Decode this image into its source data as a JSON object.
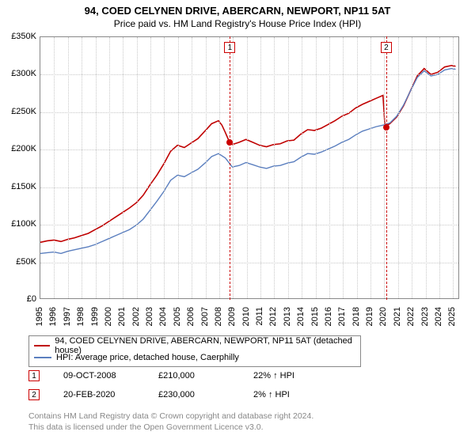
{
  "title": "94, COED CELYNEN DRIVE, ABERCARN, NEWPORT, NP11 5AT",
  "subtitle": "Price paid vs. HM Land Registry's House Price Index (HPI)",
  "chart": {
    "type": "line",
    "y": {
      "min": 0,
      "max": 350000,
      "step": 50000,
      "prefix": "£",
      "suffix": "K",
      "scale": 1000
    },
    "x": {
      "min": 1995,
      "max": 2025.5,
      "ticks": [
        1995,
        1996,
        1997,
        1998,
        1999,
        2000,
        2001,
        2002,
        2003,
        2004,
        2005,
        2006,
        2007,
        2008,
        2009,
        2010,
        2011,
        2012,
        2013,
        2014,
        2015,
        2016,
        2017,
        2018,
        2019,
        2020,
        2021,
        2022,
        2023,
        2024,
        2025
      ]
    },
    "grid_color": "#c8c8c8",
    "background_color": "#ffffff",
    "border_color": "#888888",
    "series": [
      {
        "name": "property",
        "label": "94, COED CELYNEN DRIVE, ABERCARN, NEWPORT, NP11 5AT (detached house)",
        "color": "#c00000",
        "width": 1.6,
        "points": [
          [
            1995,
            75000
          ],
          [
            1995.5,
            77000
          ],
          [
            1996,
            78000
          ],
          [
            1996.5,
            76000
          ],
          [
            1997,
            79000
          ],
          [
            1997.5,
            81000
          ],
          [
            1998,
            84000
          ],
          [
            1998.5,
            87000
          ],
          [
            1999,
            92000
          ],
          [
            1999.5,
            97000
          ],
          [
            2000,
            103000
          ],
          [
            2000.5,
            109000
          ],
          [
            2001,
            115000
          ],
          [
            2001.5,
            121000
          ],
          [
            2002,
            128000
          ],
          [
            2002.5,
            138000
          ],
          [
            2003,
            152000
          ],
          [
            2003.5,
            165000
          ],
          [
            2004,
            180000
          ],
          [
            2004.5,
            197000
          ],
          [
            2005,
            205000
          ],
          [
            2005.5,
            202000
          ],
          [
            2006,
            208000
          ],
          [
            2006.5,
            214000
          ],
          [
            2007,
            224000
          ],
          [
            2007.5,
            234000
          ],
          [
            2008,
            238000
          ],
          [
            2008.25,
            232000
          ],
          [
            2008.5,
            222000
          ],
          [
            2008.78,
            210000
          ],
          [
            2009,
            206000
          ],
          [
            2009.5,
            209000
          ],
          [
            2010,
            213000
          ],
          [
            2010.5,
            209000
          ],
          [
            2011,
            205000
          ],
          [
            2011.5,
            203000
          ],
          [
            2012,
            206000
          ],
          [
            2012.5,
            207000
          ],
          [
            2013,
            211000
          ],
          [
            2013.5,
            212000
          ],
          [
            2014,
            220000
          ],
          [
            2014.5,
            226000
          ],
          [
            2015,
            225000
          ],
          [
            2015.5,
            228000
          ],
          [
            2016,
            233000
          ],
          [
            2016.5,
            238000
          ],
          [
            2017,
            244000
          ],
          [
            2017.5,
            248000
          ],
          [
            2018,
            255000
          ],
          [
            2018.5,
            260000
          ],
          [
            2019,
            264000
          ],
          [
            2019.5,
            268000
          ],
          [
            2020,
            272000
          ],
          [
            2020.14,
            230000
          ],
          [
            2020.5,
            234000
          ],
          [
            2021,
            243000
          ],
          [
            2021.5,
            258000
          ],
          [
            2022,
            278000
          ],
          [
            2022.5,
            298000
          ],
          [
            2023,
            308000
          ],
          [
            2023.5,
            300000
          ],
          [
            2024,
            303000
          ],
          [
            2024.5,
            310000
          ],
          [
            2025,
            312000
          ],
          [
            2025.3,
            311000
          ]
        ]
      },
      {
        "name": "hpi",
        "label": "HPI: Average price, detached house, Caerphilly",
        "color": "#5b7fbf",
        "width": 1.4,
        "points": [
          [
            1995,
            60000
          ],
          [
            1995.5,
            61000
          ],
          [
            1996,
            62000
          ],
          [
            1996.5,
            60000
          ],
          [
            1997,
            63000
          ],
          [
            1997.5,
            65000
          ],
          [
            1998,
            67000
          ],
          [
            1998.5,
            69000
          ],
          [
            1999,
            72000
          ],
          [
            1999.5,
            76000
          ],
          [
            2000,
            80000
          ],
          [
            2000.5,
            84000
          ],
          [
            2001,
            88000
          ],
          [
            2001.5,
            92000
          ],
          [
            2002,
            98000
          ],
          [
            2002.5,
            106000
          ],
          [
            2003,
            118000
          ],
          [
            2003.5,
            130000
          ],
          [
            2004,
            143000
          ],
          [
            2004.5,
            158000
          ],
          [
            2005,
            165000
          ],
          [
            2005.5,
            163000
          ],
          [
            2006,
            168000
          ],
          [
            2006.5,
            173000
          ],
          [
            2007,
            181000
          ],
          [
            2007.5,
            190000
          ],
          [
            2008,
            194000
          ],
          [
            2008.5,
            188000
          ],
          [
            2009,
            176000
          ],
          [
            2009.5,
            178000
          ],
          [
            2010,
            182000
          ],
          [
            2010.5,
            179000
          ],
          [
            2011,
            176000
          ],
          [
            2011.5,
            174000
          ],
          [
            2012,
            177000
          ],
          [
            2012.5,
            178000
          ],
          [
            2013,
            181000
          ],
          [
            2013.5,
            183000
          ],
          [
            2014,
            189000
          ],
          [
            2014.5,
            194000
          ],
          [
            2015,
            193000
          ],
          [
            2015.5,
            196000
          ],
          [
            2016,
            200000
          ],
          [
            2016.5,
            204000
          ],
          [
            2017,
            209000
          ],
          [
            2017.5,
            213000
          ],
          [
            2018,
            219000
          ],
          [
            2018.5,
            224000
          ],
          [
            2019,
            227000
          ],
          [
            2019.5,
            230000
          ],
          [
            2020,
            232000
          ],
          [
            2020.5,
            235000
          ],
          [
            2021,
            244000
          ],
          [
            2021.5,
            259000
          ],
          [
            2022,
            278000
          ],
          [
            2022.5,
            296000
          ],
          [
            2023,
            305000
          ],
          [
            2023.5,
            298000
          ],
          [
            2024,
            300000
          ],
          [
            2024.5,
            306000
          ],
          [
            2025,
            308000
          ],
          [
            2025.3,
            307000
          ]
        ]
      }
    ],
    "markers": [
      {
        "n": "1",
        "x": 2008.78,
        "y": 210000
      },
      {
        "n": "2",
        "x": 2020.14,
        "y": 230000
      }
    ]
  },
  "legend": {
    "rows": [
      {
        "color": "#c00000",
        "label": "94, COED CELYNEN DRIVE, ABERCARN, NEWPORT, NP11 5AT (detached house)"
      },
      {
        "color": "#5b7fbf",
        "label": "HPI: Average price, detached house, Caerphilly"
      }
    ]
  },
  "sales": [
    {
      "n": "1",
      "date": "09-OCT-2008",
      "price": "£210,000",
      "delta": "22% ↑ HPI"
    },
    {
      "n": "2",
      "date": "20-FEB-2020",
      "price": "£230,000",
      "delta": "2% ↑ HPI"
    }
  ],
  "footnote_l1": "Contains HM Land Registry data © Crown copyright and database right 2024.",
  "footnote_l2": "This data is licensed under the Open Government Licence v3.0."
}
